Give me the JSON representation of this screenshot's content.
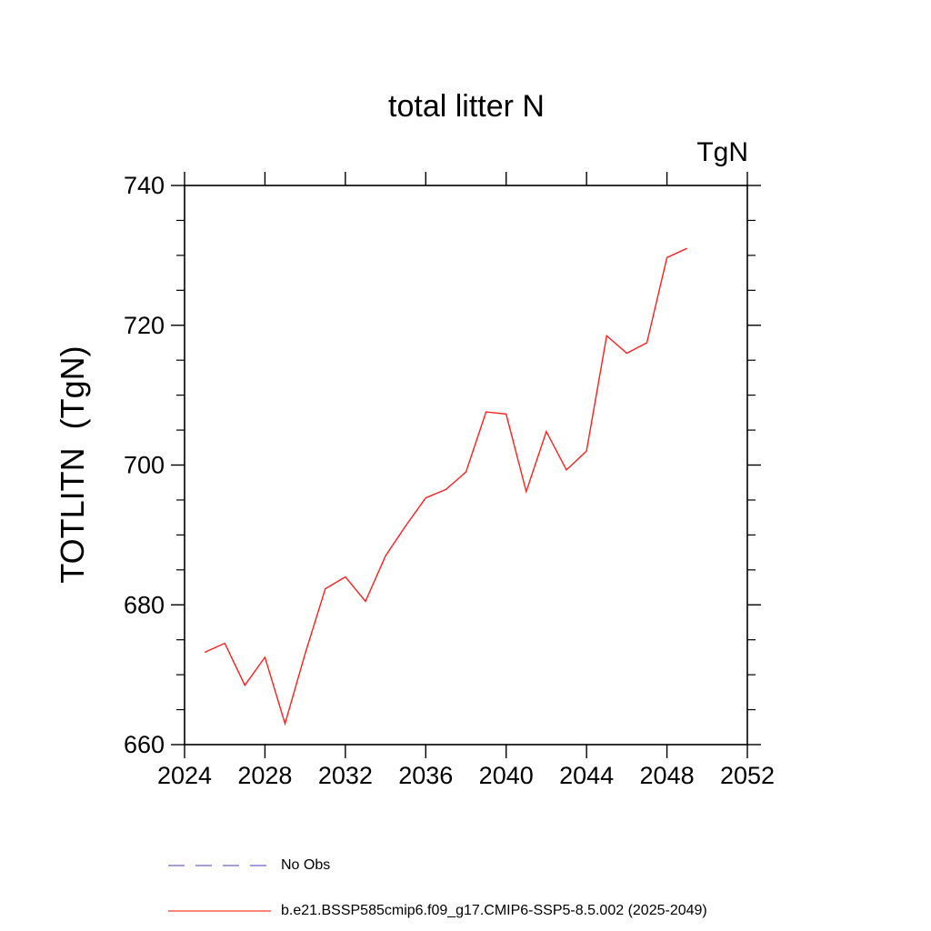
{
  "page": {
    "background": "#ffffff"
  },
  "chart_data": {
    "type": "line",
    "title": "total litter N",
    "unit_label": "TgN",
    "ylabel": "TOTLITN  (TgN)",
    "xlabel": "",
    "xlim": [
      2024,
      2052
    ],
    "ylim": [
      660,
      740
    ],
    "xticks": [
      2024,
      2028,
      2032,
      2036,
      2040,
      2044,
      2048,
      2052
    ],
    "yticks": [
      660,
      680,
      700,
      720,
      740
    ],
    "y_minor_step": 5,
    "grid": false,
    "axis_color": "#000000",
    "series": [
      {
        "name": "b.e21.BSSP585cmip6.f09_g17.CMIP6-SSP5-8.5.002 (2025-2049)",
        "color": "#ff1f1f",
        "style": "solid",
        "x": [
          2025,
          2026,
          2027,
          2028,
          2029,
          2030,
          2031,
          2032,
          2033,
          2034,
          2035,
          2036,
          2037,
          2038,
          2039,
          2040,
          2041,
          2042,
          2043,
          2044,
          2045,
          2046,
          2047,
          2048,
          2049
        ],
        "values": [
          673.2,
          674.5,
          668.5,
          672.5,
          663.0,
          673.0,
          682.3,
          684.0,
          680.5,
          687.0,
          691.3,
          695.3,
          696.5,
          699.0,
          707.6,
          707.3,
          696.2,
          704.8,
          699.3,
          702.0,
          718.5,
          716.0,
          717.5,
          729.7,
          731.0
        ]
      }
    ],
    "legend": {
      "position": "bottom-left",
      "entries": [
        {
          "label": "No Obs",
          "color": "#8080d8",
          "style": "dashed"
        },
        {
          "label": "b.e21.BSSP585cmip6.f09_g17.CMIP6-SSP5-8.5.002 (2025-2049)",
          "color": "#ff5a4d",
          "style": "solid"
        }
      ]
    }
  }
}
